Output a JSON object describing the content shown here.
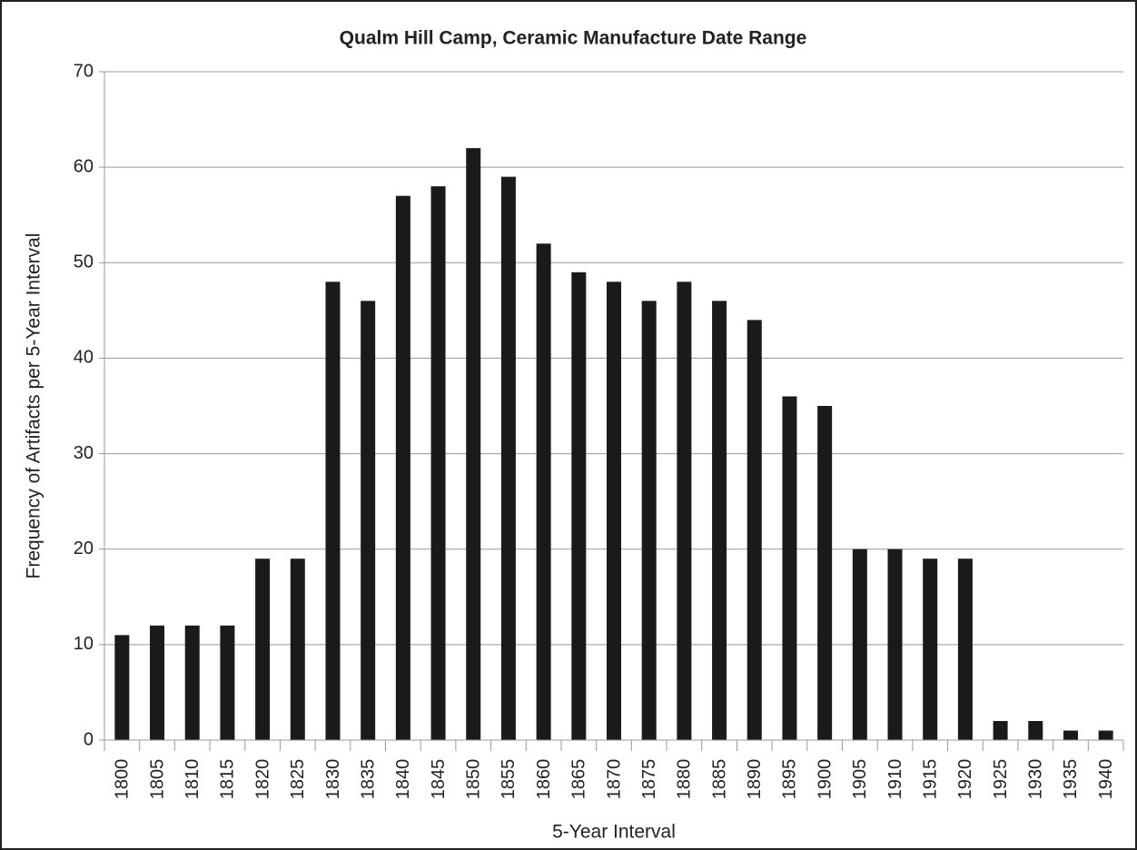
{
  "chart_data": {
    "type": "bar",
    "title": "Qualm Hill Camp, Ceramic Manufacture Date Range",
    "x_label": "5-Year Interval",
    "y_label": "Frequency of Artifacts per 5-Year Interval",
    "categories": [
      "1800",
      "1805",
      "1810",
      "1815",
      "1820",
      "1825",
      "1830",
      "1835",
      "1840",
      "1845",
      "1850",
      "1855",
      "1860",
      "1865",
      "1870",
      "1875",
      "1880",
      "1885",
      "1890",
      "1895",
      "1900",
      "1905",
      "1910",
      "1915",
      "1920",
      "1925",
      "1930",
      "1935",
      "1940"
    ],
    "values": [
      11,
      12,
      12,
      12,
      19,
      19,
      48,
      46,
      57,
      58,
      62,
      59,
      52,
      49,
      48,
      46,
      48,
      46,
      44,
      36,
      35,
      20,
      20,
      19,
      19,
      2,
      2,
      1,
      1
    ],
    "color": "#1a1a1a",
    "ylim": [
      0,
      70
    ],
    "yticks": [
      0,
      10,
      20,
      30,
      40,
      50,
      60,
      70
    ],
    "grid": true
  }
}
